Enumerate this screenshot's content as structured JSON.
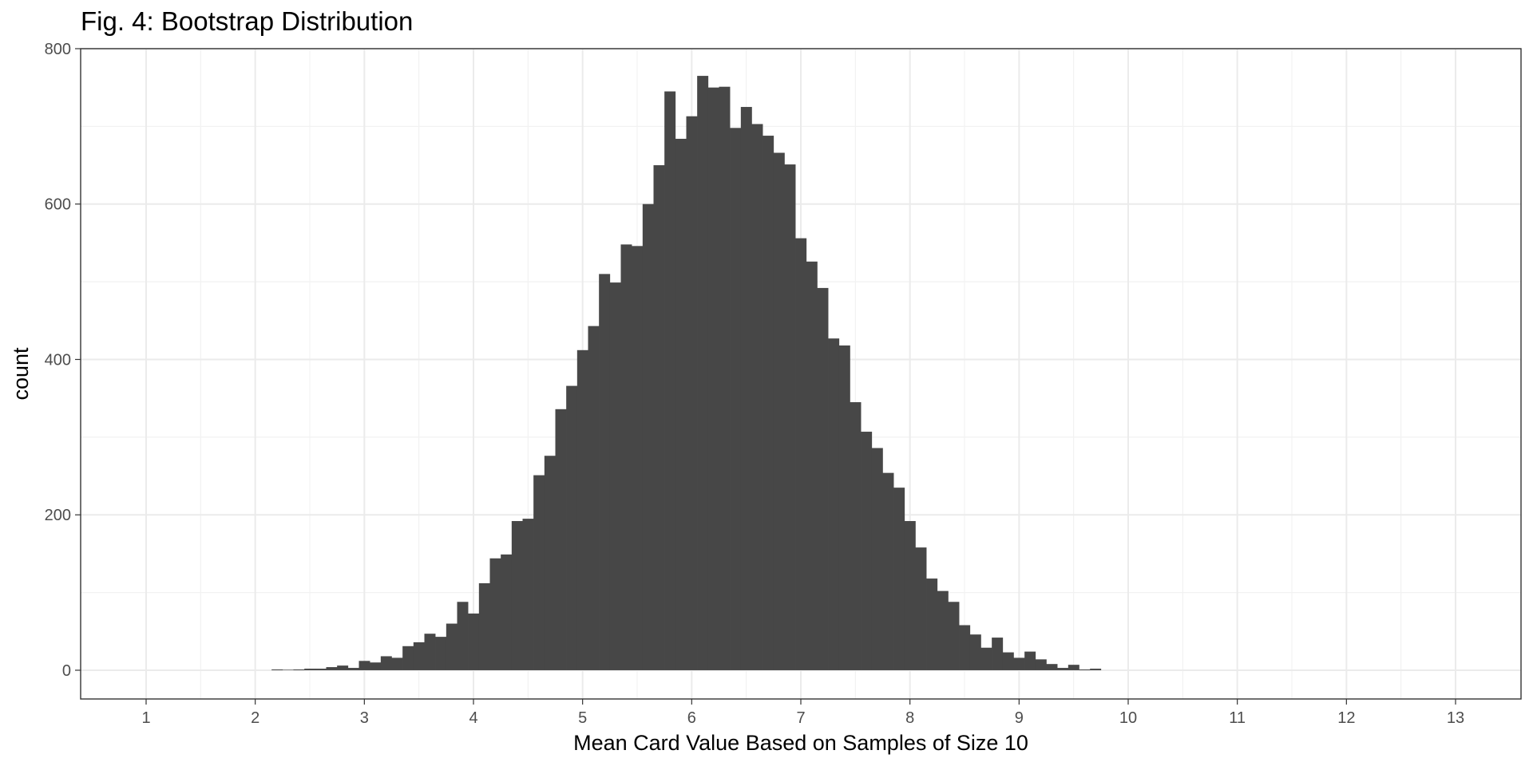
{
  "chart_data": {
    "type": "bar",
    "title": "Fig. 4: Bootstrap Distribution",
    "xlabel": "Mean Card Value Based on Samples of Size 10",
    "ylabel": "count",
    "xlim": [
      0.4,
      13.6
    ],
    "ylim": [
      -37,
      800
    ],
    "x_ticks": [
      1,
      2,
      3,
      4,
      5,
      6,
      7,
      8,
      9,
      10,
      11,
      12,
      13
    ],
    "y_ticks": [
      0,
      200,
      400,
      600,
      800
    ],
    "grid": true,
    "bin_width": 0.1,
    "bar_color": "#474747",
    "series": [
      {
        "x": [
          2.2,
          2.3,
          2.4,
          2.5,
          2.6,
          2.7,
          2.8,
          2.9,
          3.0,
          3.1,
          3.2,
          3.3,
          3.4,
          3.5,
          3.6,
          3.7,
          3.8,
          3.9,
          4.0,
          4.1,
          4.2,
          4.3,
          4.4,
          4.5,
          4.6,
          4.7,
          4.8,
          4.9,
          5.0,
          5.1,
          5.2,
          5.3,
          5.4,
          5.5,
          5.6,
          5.7,
          5.8,
          5.9,
          6.0,
          6.1,
          6.2,
          6.3,
          6.4,
          6.5,
          6.6,
          6.7,
          6.8,
          6.9,
          7.0,
          7.1,
          7.2,
          7.3,
          7.4,
          7.5,
          7.6,
          7.7,
          7.8,
          7.9,
          8.0,
          8.1,
          8.2,
          8.3,
          8.4,
          8.5,
          8.6,
          8.7,
          8.8,
          8.9,
          9.0,
          9.1,
          9.2,
          9.3,
          9.4,
          9.5,
          9.6,
          9.7
        ],
        "values": [
          1,
          0,
          1,
          2,
          2,
          4,
          6,
          3,
          12,
          10,
          18,
          16,
          31,
          36,
          47,
          43,
          60,
          88,
          73,
          112,
          144,
          149,
          192,
          195,
          251,
          276,
          336,
          366,
          412,
          443,
          510,
          499,
          548,
          546,
          600,
          650,
          745,
          684,
          713,
          765,
          750,
          751,
          698,
          725,
          703,
          688,
          666,
          651,
          556,
          526,
          492,
          427,
          418,
          345,
          307,
          286,
          254,
          235,
          192,
          158,
          118,
          102,
          88,
          58,
          46,
          29,
          42,
          23,
          16,
          24,
          14,
          8,
          3,
          7,
          1,
          2
        ]
      }
    ]
  }
}
